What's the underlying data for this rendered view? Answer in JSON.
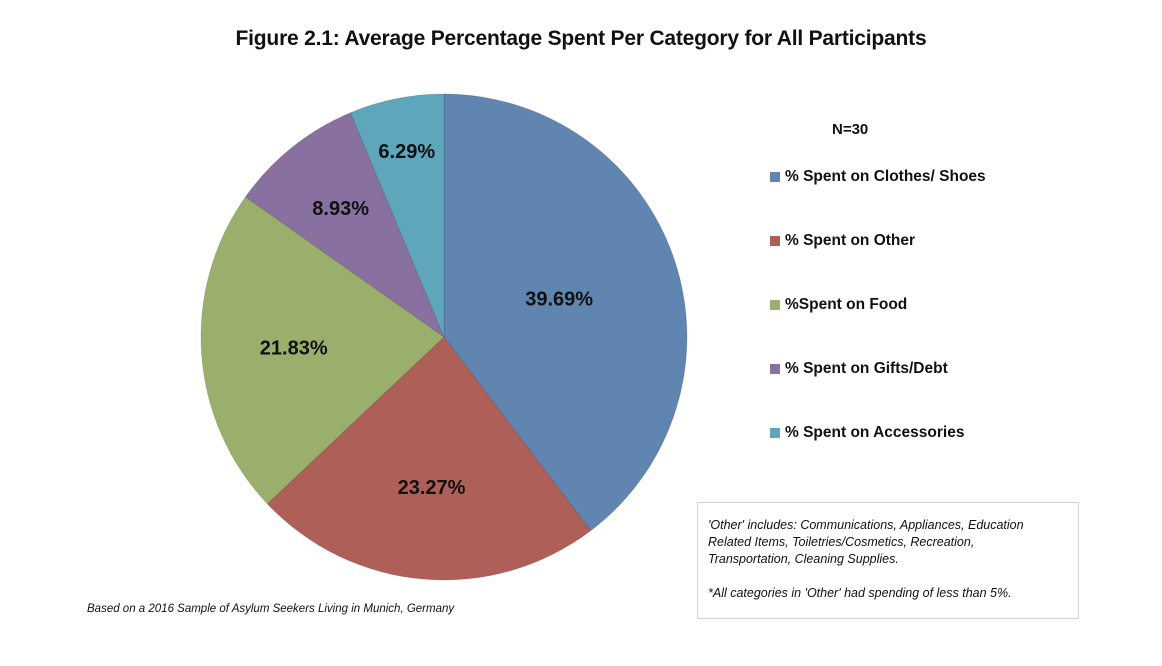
{
  "chart_data": {
    "type": "pie",
    "title": "Figure 2.1: Average Percentage Spent Per Category for All Participants",
    "sample_size_label": "N=30",
    "slices": [
      {
        "name": "% Spent on Clothes/ Shoes",
        "value": 39.69,
        "label": "39.69%",
        "color": "#5f85b0"
      },
      {
        "name": "% Spent on Other",
        "value": 23.27,
        "label": "23.27%",
        "color": "#ae5f58"
      },
      {
        "name": "%Spent on Food",
        "value": 21.83,
        "label": "21.83%",
        "color": "#9aaf6c"
      },
      {
        "name": "% Spent on Gifts/Debt",
        "value": 8.93,
        "label": "8.93%",
        "color": "#8870a0"
      },
      {
        "name": "% Spent on Accessories",
        "value": 6.29,
        "label": "6.29%",
        "color": "#5ea6bb"
      }
    ],
    "start_angle": "12 o'clock",
    "direction": "clockwise",
    "legend_position": "right",
    "note": {
      "line1": "'Other' includes: Communications, Appliances, Education",
      "line2": "Related Items, Toiletries/Cosmetics, Recreation,",
      "line3": "Transportation, Cleaning Supplies.",
      "footnote": "*All categories in 'Other' had spending of less than 5%."
    },
    "source": "Based on a 2016 Sample of Asylum Seekers Living in Munich, Germany"
  }
}
